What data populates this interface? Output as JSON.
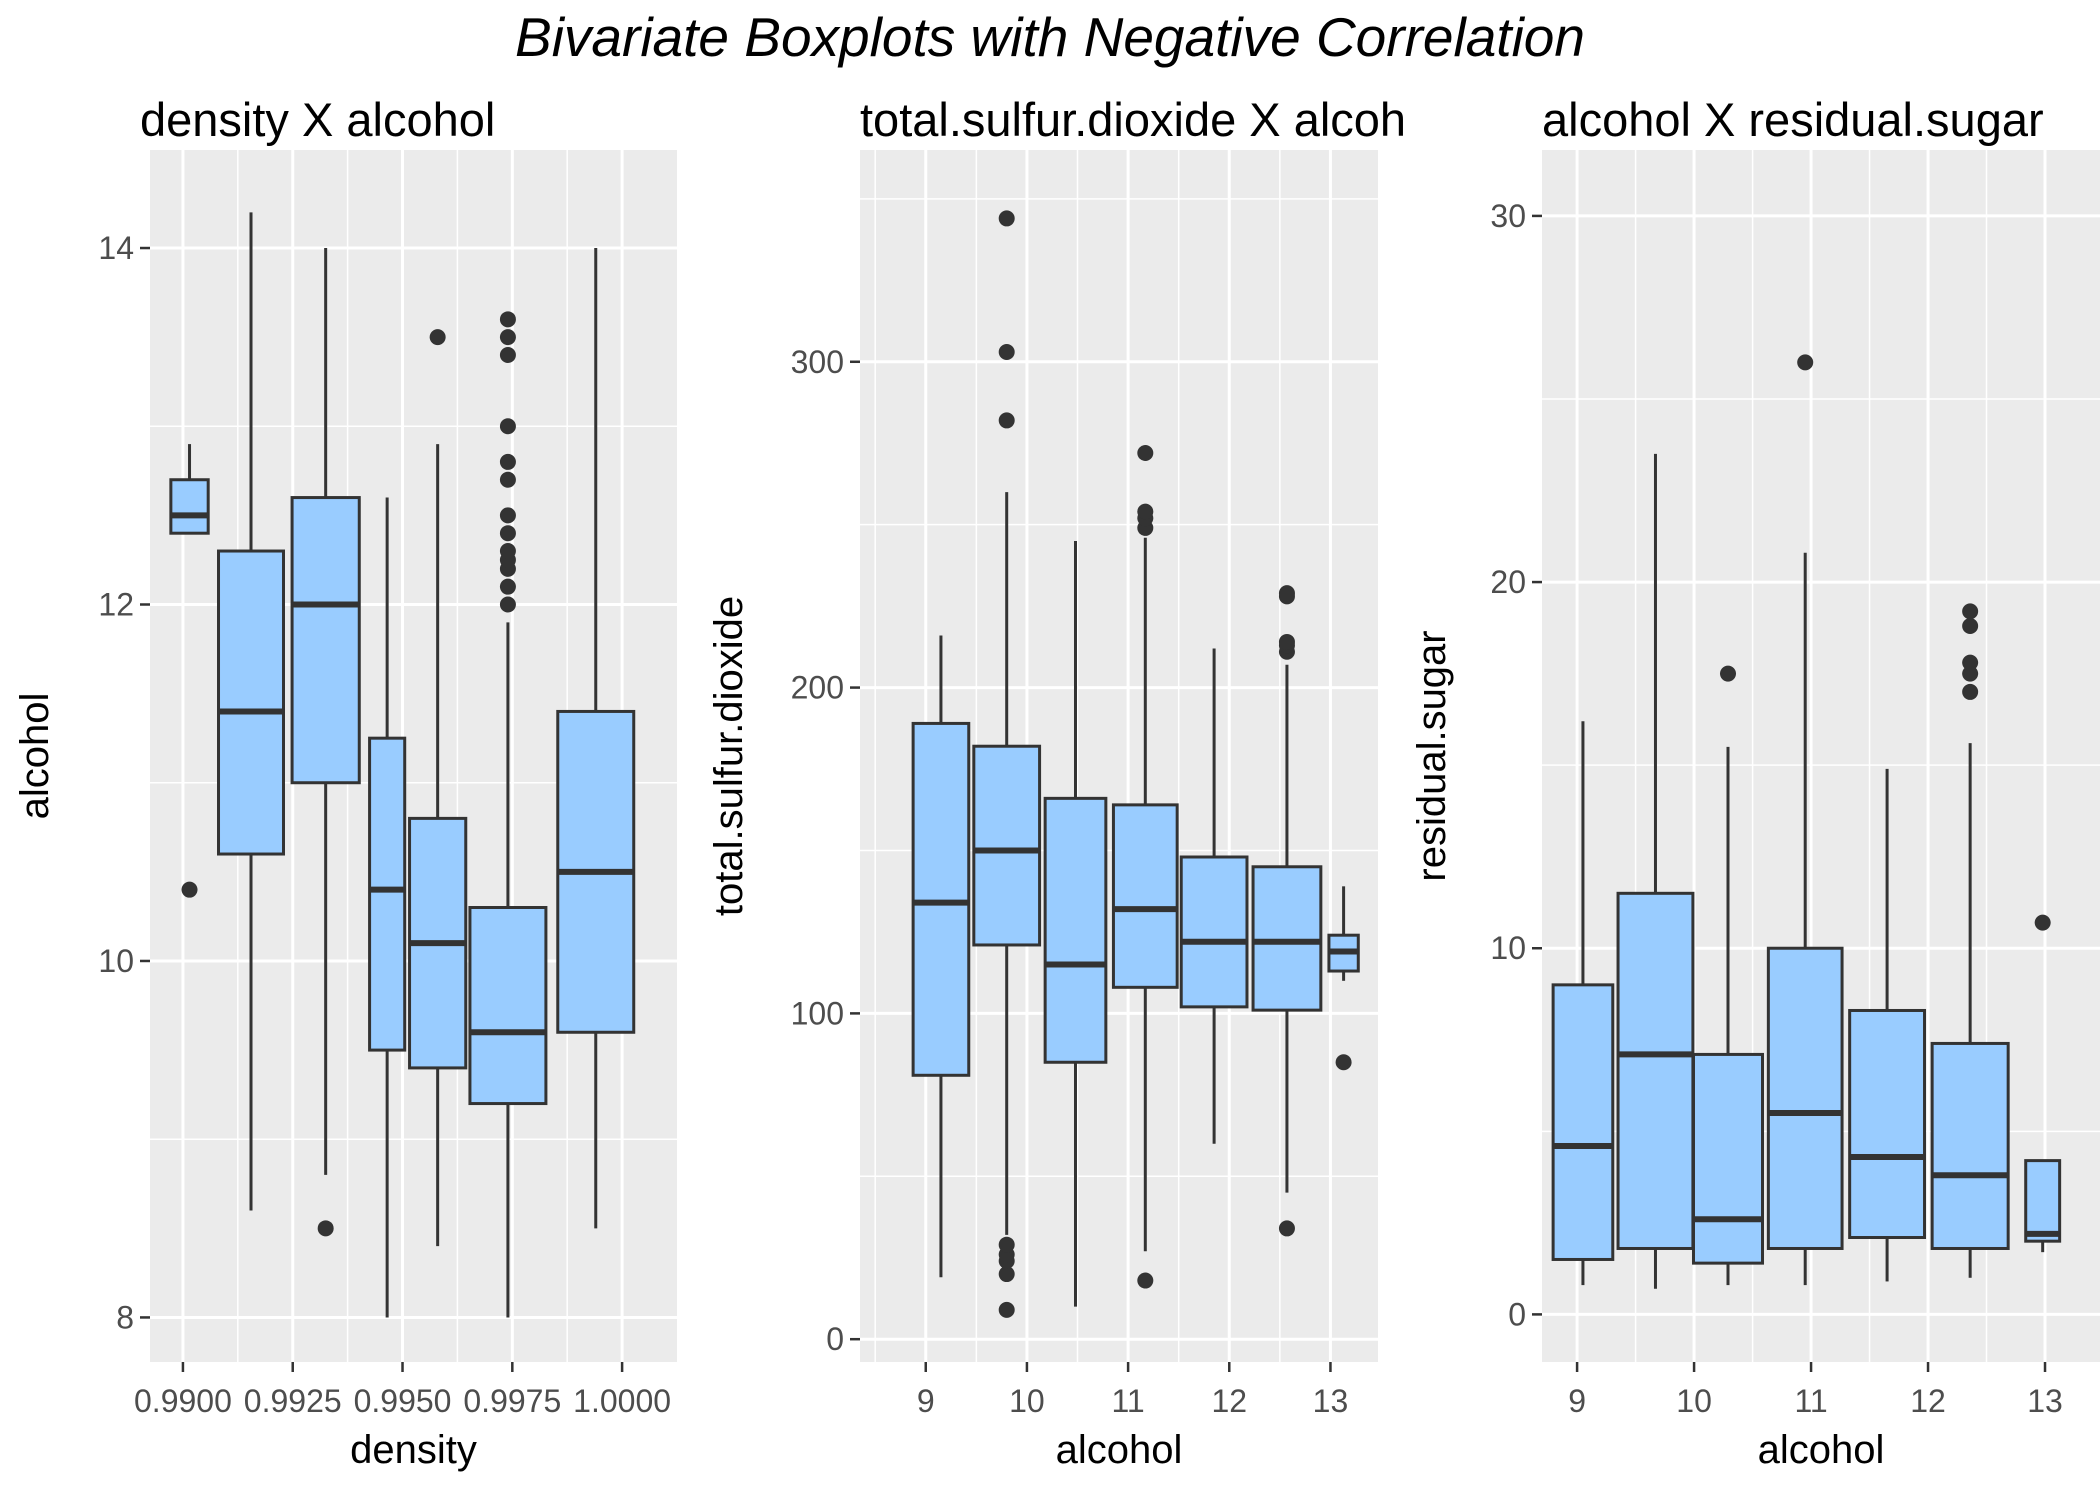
{
  "title": "Bivariate Boxplots with Negative Correlation",
  "colors": {
    "panel_bg": "#EBEBEB",
    "grid": "#FFFFFF",
    "box_fill": "#99CCFF",
    "box_stroke": "#333333",
    "outlier": "#333333",
    "tick_text": "#4D4D4D",
    "axis_title": "#000000"
  },
  "chart_data": [
    {
      "type": "boxplot",
      "title": "density X alcohol",
      "xlabel": "density",
      "ylabel": "alcohol",
      "xlim": [
        0.98925,
        1.00125
      ],
      "ylim": [
        7.75,
        14.55
      ],
      "x_ticks": [
        0.99,
        0.9925,
        0.995,
        0.9975,
        1.0
      ],
      "x_tick_labels": [
        "0.9900",
        "0.9925",
        "0.9950",
        "0.9975",
        "1.0000"
      ],
      "y_ticks": [
        8,
        10,
        12,
        14
      ],
      "boxes": [
        {
          "x": 0.99015,
          "width": 0.00085,
          "lower_whisker": 12.4,
          "q1": 12.4,
          "median": 12.5,
          "q3": 12.7,
          "upper_whisker": 12.9,
          "outliers": [
            10.4
          ]
        },
        {
          "x": 0.99155,
          "width": 0.00148,
          "lower_whisker": 8.6,
          "q1": 10.6,
          "median": 11.4,
          "q3": 12.3,
          "upper_whisker": 14.2,
          "outliers": []
        },
        {
          "x": 0.99325,
          "width": 0.00153,
          "lower_whisker": 8.8,
          "q1": 11.0,
          "median": 12.0,
          "q3": 12.6,
          "upper_whisker": 14.0,
          "outliers": [
            8.5
          ]
        },
        {
          "x": 0.99465,
          "width": 0.0008,
          "lower_whisker": 8.0,
          "q1": 9.5,
          "median": 10.4,
          "q3": 11.25,
          "upper_whisker": 12.6,
          "outliers": []
        },
        {
          "x": 0.9958,
          "width": 0.00128,
          "lower_whisker": 8.4,
          "q1": 9.4,
          "median": 10.1,
          "q3": 10.8,
          "upper_whisker": 12.9,
          "outliers": [
            13.5
          ]
        },
        {
          "x": 0.9974,
          "width": 0.00173,
          "lower_whisker": 8.0,
          "q1": 9.2,
          "median": 9.6,
          "q3": 10.3,
          "upper_whisker": 11.9,
          "outliers": [
            12.0,
            12.1,
            12.2,
            12.25,
            12.3,
            12.4,
            12.5,
            12.7,
            12.8,
            13.0,
            13.4,
            13.5,
            13.6
          ]
        },
        {
          "x": 0.9994,
          "width": 0.00173,
          "lower_whisker": 8.5,
          "q1": 9.6,
          "median": 10.5,
          "q3": 11.4,
          "upper_whisker": 14.0,
          "outliers": []
        }
      ]
    },
    {
      "type": "boxplot",
      "title": "total.sulfur.dioxide X alcohol",
      "xlabel": "alcohol",
      "ylabel": "total.sulfur.dioxide",
      "xlim": [
        8.35,
        13.47
      ],
      "ylim": [
        -7,
        365
      ],
      "x_ticks": [
        9,
        10,
        11,
        12,
        13
      ],
      "x_tick_labels": [
        "9",
        "10",
        "11",
        "12",
        "13"
      ],
      "y_ticks": [
        0,
        100,
        200,
        300
      ],
      "boxes": [
        {
          "x": 9.15,
          "width": 0.55,
          "lower_whisker": 19,
          "q1": 81,
          "median": 134,
          "q3": 189,
          "upper_whisker": 216,
          "outliers": []
        },
        {
          "x": 9.8,
          "width": 0.65,
          "lower_whisker": 32,
          "q1": 121,
          "median": 150,
          "q3": 182,
          "upper_whisker": 260,
          "outliers": [
            9,
            20,
            24,
            26,
            29,
            282,
            303,
            344
          ]
        },
        {
          "x": 10.48,
          "width": 0.6,
          "lower_whisker": 10,
          "q1": 85,
          "median": 115,
          "q3": 166,
          "upper_whisker": 245,
          "outliers": []
        },
        {
          "x": 11.17,
          "width": 0.63,
          "lower_whisker": 27,
          "q1": 108,
          "median": 132,
          "q3": 164,
          "upper_whisker": 246,
          "outliers": [
            18,
            249,
            252,
            254,
            272
          ]
        },
        {
          "x": 11.85,
          "width": 0.65,
          "lower_whisker": 60,
          "q1": 102,
          "median": 122,
          "q3": 148,
          "upper_whisker": 212,
          "outliers": []
        },
        {
          "x": 12.57,
          "width": 0.67,
          "lower_whisker": 45,
          "q1": 101,
          "median": 122,
          "q3": 145,
          "upper_whisker": 207,
          "outliers": [
            34,
            211,
            213,
            214,
            228,
            229
          ]
        },
        {
          "x": 13.13,
          "width": 0.29,
          "lower_whisker": 110,
          "q1": 113,
          "median": 119,
          "q3": 124,
          "upper_whisker": 139,
          "outliers": [
            85
          ]
        }
      ]
    },
    {
      "type": "boxplot",
      "title": "alcohol X residual.sugar",
      "xlabel": "alcohol",
      "ylabel": "residual.sugar",
      "xlim": [
        8.7,
        13.47
      ],
      "ylim": [
        -1.3,
        31.8
      ],
      "x_ticks": [
        9,
        10,
        11,
        12,
        13
      ],
      "x_tick_labels": [
        "9",
        "10",
        "11",
        "12",
        "13"
      ],
      "y_ticks": [
        0,
        10,
        20,
        30
      ],
      "boxes": [
        {
          "x": 9.05,
          "width": 0.51,
          "lower_whisker": 0.8,
          "q1": 1.5,
          "median": 4.6,
          "q3": 9.0,
          "upper_whisker": 16.2,
          "outliers": []
        },
        {
          "x": 9.67,
          "width": 0.64,
          "lower_whisker": 0.7,
          "q1": 1.8,
          "median": 7.1,
          "q3": 11.5,
          "upper_whisker": 23.5,
          "outliers": []
        },
        {
          "x": 10.29,
          "width": 0.59,
          "lower_whisker": 0.8,
          "q1": 1.4,
          "median": 2.6,
          "q3": 7.1,
          "upper_whisker": 15.5,
          "outliers": [
            17.5
          ]
        },
        {
          "x": 10.95,
          "width": 0.63,
          "lower_whisker": 0.8,
          "q1": 1.8,
          "median": 5.5,
          "q3": 10.0,
          "upper_whisker": 20.8,
          "outliers": [
            26.0
          ]
        },
        {
          "x": 11.65,
          "width": 0.64,
          "lower_whisker": 0.9,
          "q1": 2.1,
          "median": 4.3,
          "q3": 8.3,
          "upper_whisker": 14.9,
          "outliers": []
        },
        {
          "x": 12.36,
          "width": 0.65,
          "lower_whisker": 1.0,
          "q1": 1.8,
          "median": 3.8,
          "q3": 7.4,
          "upper_whisker": 15.6,
          "outliers": [
            17.0,
            17.5,
            17.8,
            18.8,
            19.2
          ]
        },
        {
          "x": 12.98,
          "width": 0.29,
          "lower_whisker": 1.7,
          "q1": 2.0,
          "median": 2.2,
          "q3": 4.2,
          "upper_whisker": 4.2,
          "outliers": [
            10.7
          ]
        }
      ]
    }
  ]
}
